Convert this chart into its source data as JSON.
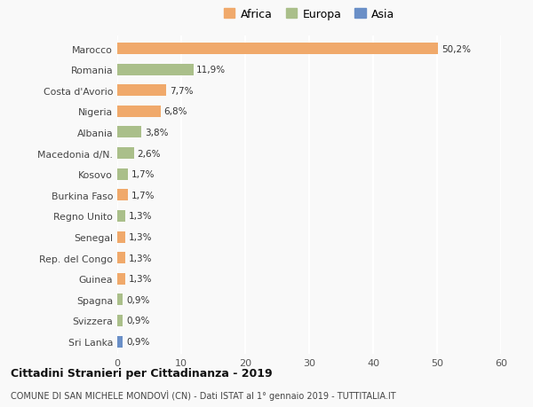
{
  "categories": [
    "Marocco",
    "Romania",
    "Costa d'Avorio",
    "Nigeria",
    "Albania",
    "Macedonia d/N.",
    "Kosovo",
    "Burkina Faso",
    "Regno Unito",
    "Senegal",
    "Rep. del Congo",
    "Guinea",
    "Spagna",
    "Svizzera",
    "Sri Lanka"
  ],
  "values": [
    50.2,
    11.9,
    7.7,
    6.8,
    3.8,
    2.6,
    1.7,
    1.7,
    1.3,
    1.3,
    1.3,
    1.3,
    0.9,
    0.9,
    0.9
  ],
  "labels": [
    "50,2%",
    "11,9%",
    "7,7%",
    "6,8%",
    "3,8%",
    "2,6%",
    "1,7%",
    "1,7%",
    "1,3%",
    "1,3%",
    "1,3%",
    "1,3%",
    "0,9%",
    "0,9%",
    "0,9%"
  ],
  "continents": [
    "Africa",
    "Europa",
    "Africa",
    "Africa",
    "Europa",
    "Europa",
    "Europa",
    "Africa",
    "Europa",
    "Africa",
    "Africa",
    "Africa",
    "Europa",
    "Europa",
    "Asia"
  ],
  "colors": {
    "Africa": "#F0A96B",
    "Europa": "#AABF8A",
    "Asia": "#6A8FC7"
  },
  "legend_labels": [
    "Africa",
    "Europa",
    "Asia"
  ],
  "title_bold": "Cittadini Stranieri per Cittadinanza - 2019",
  "subtitle": "COMUNE DI SAN MICHELE MONDOVÌ (CN) - Dati ISTAT al 1° gennaio 2019 - TUTTITALIA.IT",
  "xlim": [
    0,
    60
  ],
  "xticks": [
    0,
    10,
    20,
    30,
    40,
    50,
    60
  ],
  "background_color": "#f9f9f9",
  "grid_color": "#ffffff"
}
